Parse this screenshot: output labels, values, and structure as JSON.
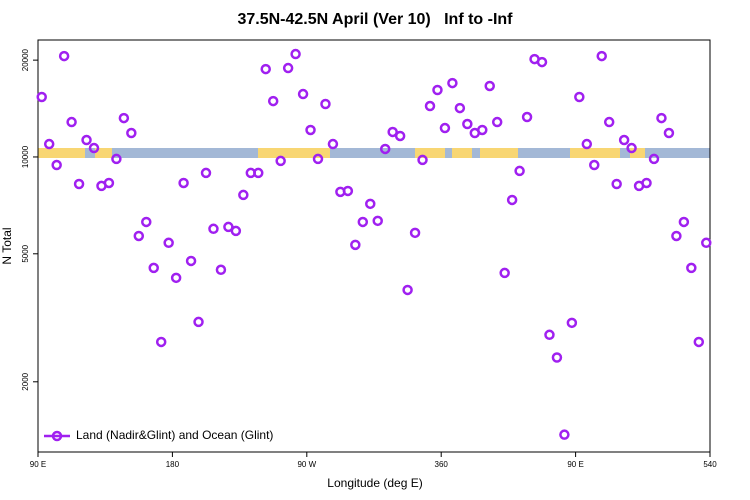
{
  "chart_data": {
    "type": "scatter",
    "title": "37.5N-42.5N April (Ver 10)   Inf to -Inf",
    "xlabel": "Longitude (deg E)",
    "ylabel": "N Total",
    "log_y": true,
    "legend": "lower left",
    "xlim": [
      90,
      540
    ],
    "ylim": [
      1210,
      23100
    ],
    "xticks": [
      {
        "value": 90,
        "label": "90 E"
      },
      180,
      {
        "value": 270,
        "label": "90 W"
      },
      360,
      {
        "value": 450,
        "label": "90 E"
      },
      540
    ],
    "yticks": [
      2000,
      5000,
      10000,
      20000
    ],
    "x": [
      92.5,
      97.5,
      102.5,
      107.5,
      112.5,
      117.5,
      122.5,
      127.5,
      132.5,
      137.5,
      142.5,
      147.5,
      152.5,
      157.5,
      162.5,
      167.5,
      172.5,
      177.5,
      182.5,
      187.5,
      192.5,
      197.5,
      202.5,
      207.5,
      212.5,
      217.5,
      222.5,
      227.5,
      232.5,
      237.5,
      242.5,
      247.5,
      252.5,
      257.5,
      262.5,
      267.5,
      272.5,
      277.5,
      282.5,
      287.5,
      292.5,
      297.5,
      302.5,
      307.5,
      312.5,
      317.5,
      322.5,
      327.5,
      332.5,
      337.5,
      342.5,
      347.5,
      352.5,
      357.5,
      362.5,
      367.5,
      372.5,
      377.5,
      382.5,
      387.5,
      392.5,
      397.5,
      402.5,
      407.5,
      412.5,
      417.5,
      422.5,
      427.5,
      432.5,
      437.5,
      442.5,
      447.5,
      452.5,
      457.5,
      462.5,
      467.5,
      472.5,
      477.5,
      482.5,
      487.5,
      492.5,
      497.5,
      502.5,
      507.5,
      512.5,
      517.5,
      522.5,
      527.5,
      532.5,
      537.5
    ],
    "series": [
      {
        "name": "Land (Nadir&Glint) and Ocean (Glint)",
        "color": "#a020f0",
        "values": [
          15360,
          10970,
          9440,
          20590,
          12840,
          8240,
          11290,
          10660,
          8130,
          8300,
          9860,
          13210,
          11870,
          5680,
          6280,
          4520,
          2660,
          5410,
          4210,
          8300,
          4750,
          3070,
          8920,
          5980,
          4460,
          6060,
          5890,
          7620,
          8920,
          8920,
          18760,
          14920,
          9720,
          18900,
          20890,
          15690,
          12130,
          9860,
          14610,
          10970,
          7790,
          7840,
          5330,
          6280,
          7150,
          6330,
          10590,
          11960,
          11620,
          3860,
          5810,
          9790,
          14400,
          16150,
          12300,
          16970,
          14190,
          12660,
          11870,
          12130,
          16620,
          12840,
          4360,
          7350,
          9050,
          13310,
          20150,
          19720,
          2800,
          2380,
          1370,
          3050,
          15360,
          10970,
          9440,
          20590,
          12840,
          8240,
          11290,
          10660,
          8130,
          8300,
          9860,
          13210,
          11870,
          5680,
          6280,
          4520,
          2660,
          5410
        ]
      }
    ]
  }
}
